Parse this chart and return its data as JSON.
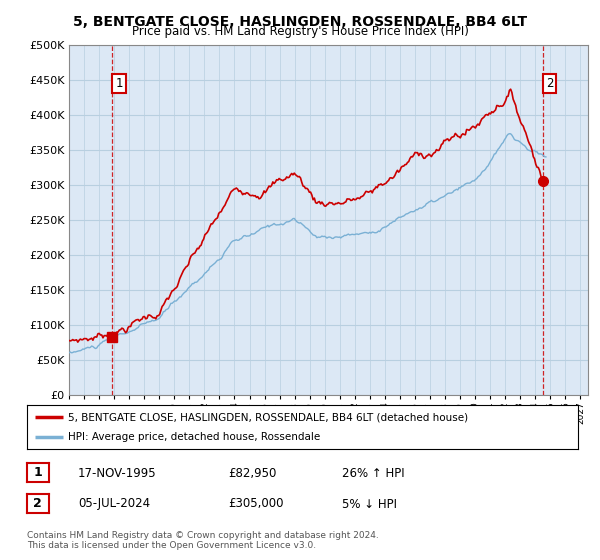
{
  "title": "5, BENTGATE CLOSE, HASLINGDEN, ROSSENDALE, BB4 6LT",
  "subtitle": "Price paid vs. HM Land Registry's House Price Index (HPI)",
  "ylim": [
    0,
    500000
  ],
  "yticks": [
    0,
    50000,
    100000,
    150000,
    200000,
    250000,
    300000,
    350000,
    400000,
    450000,
    500000
  ],
  "ytick_labels": [
    "£0",
    "£50K",
    "£100K",
    "£150K",
    "£200K",
    "£250K",
    "£300K",
    "£350K",
    "£400K",
    "£450K",
    "£500K"
  ],
  "sale1_date": 1995.88,
  "sale1_price": 82950,
  "sale2_date": 2024.51,
  "sale2_price": 305000,
  "line_color_property": "#cc0000",
  "line_color_hpi": "#7ab0d4",
  "bg_color": "#dce8f5",
  "grid_color": "#b8cfe0",
  "vline_color": "#cc0000",
  "legend_label_property": "5, BENTGATE CLOSE, HASLINGDEN, ROSSENDALE, BB4 6LT (detached house)",
  "legend_label_hpi": "HPI: Average price, detached house, Rossendale",
  "table_row1": [
    "1",
    "17-NOV-1995",
    "£82,950",
    "26% ↑ HPI"
  ],
  "table_row2": [
    "2",
    "05-JUL-2024",
    "£305,000",
    "5% ↓ HPI"
  ],
  "footnote": "Contains HM Land Registry data © Crown copyright and database right 2024.\nThis data is licensed under the Open Government Licence v3.0.",
  "xlim_start": 1993.0,
  "xlim_end": 2027.5,
  "xticks": [
    1993,
    1994,
    1995,
    1996,
    1997,
    1998,
    1999,
    2000,
    2001,
    2002,
    2003,
    2004,
    2005,
    2006,
    2007,
    2008,
    2009,
    2010,
    2011,
    2012,
    2013,
    2014,
    2015,
    2016,
    2017,
    2018,
    2019,
    2020,
    2021,
    2022,
    2023,
    2024,
    2025,
    2026,
    2027
  ],
  "hpi_seed": 10,
  "prop_seed": 7
}
